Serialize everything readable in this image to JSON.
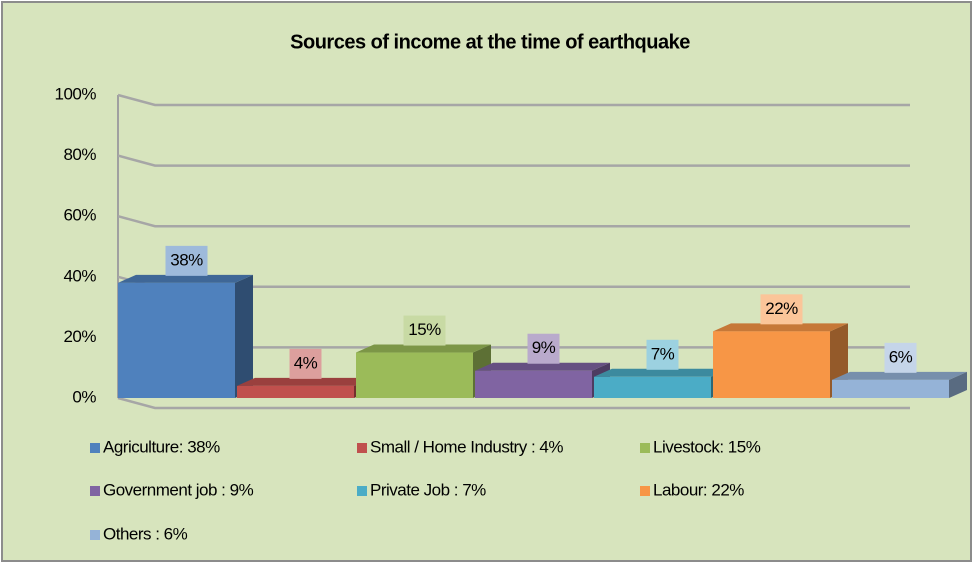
{
  "chart_data": {
    "type": "bar3d",
    "title": "Sources of income at the time of earthquake",
    "ylim": [
      0,
      100
    ],
    "yticks": [
      {
        "value": 0,
        "label": "0%"
      },
      {
        "value": 20,
        "label": "20%"
      },
      {
        "value": 40,
        "label": "40%"
      },
      {
        "value": 60,
        "label": "60%"
      },
      {
        "value": 80,
        "label": "80%"
      },
      {
        "value": 100,
        "label": "100%"
      }
    ],
    "grid": true,
    "legend": "bottom",
    "series": [
      {
        "name": "Agriculture: 38%",
        "color": "#4f81bd",
        "values": [
          38
        ],
        "value_labels": [
          "38%"
        ]
      },
      {
        "name": "Small / Home Industry : 4%",
        "color": "#c0504d",
        "values": [
          4
        ],
        "value_labels": [
          "4%"
        ]
      },
      {
        "name": "Livestock: 15%",
        "color": "#9bbb59",
        "values": [
          15
        ],
        "value_labels": [
          "15%"
        ]
      },
      {
        "name": "Government job : 9%",
        "color": "#8064a2",
        "values": [
          9
        ],
        "value_labels": [
          "9%"
        ]
      },
      {
        "name": "Private Job : 7%",
        "color": "#4bacc6",
        "values": [
          7
        ],
        "value_labels": [
          "7%"
        ]
      },
      {
        "name": "Labour: 22%",
        "color": "#f79646",
        "values": [
          22
        ],
        "value_labels": [
          "22%"
        ]
      },
      {
        "name": "Others : 6%",
        "color": "#95b3d7",
        "values": [
          6
        ],
        "value_labels": [
          "6%"
        ]
      }
    ]
  }
}
